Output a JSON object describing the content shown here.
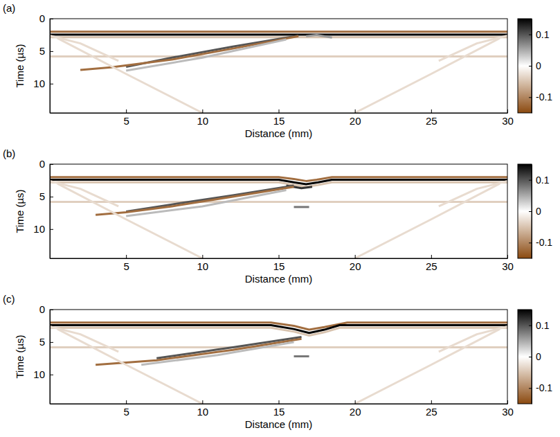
{
  "chart_data": [
    {
      "type": "image",
      "title": "(a)",
      "xlabel": "Distance (mm)",
      "ylabel": "Time (µs)",
      "xlim": [
        0,
        30
      ],
      "xticks": [
        5,
        10,
        15,
        20,
        25,
        30
      ],
      "ylim": [
        0,
        14.5
      ],
      "yticks": [
        0,
        5,
        10
      ],
      "colorbar_lim": [
        -0.15,
        0.15
      ],
      "colorbar_ticks": [
        -0.1,
        0,
        0.1
      ],
      "series": [
        {
          "amplitude": -0.12,
          "x": [
            0,
            30
          ],
          "y": [
            2.0,
            2.0
          ]
        },
        {
          "amplitude": 0.15,
          "x": [
            0,
            30
          ],
          "y": [
            2.45,
            2.45
          ]
        },
        {
          "amplitude": -0.05,
          "x": [
            0,
            30
          ],
          "y": [
            2.85,
            2.85
          ]
        },
        {
          "amplitude": -0.04,
          "x": [
            0,
            30
          ],
          "y": [
            5.8,
            5.8
          ]
        },
        {
          "amplitude": 0.1,
          "x": [
            16.3,
            12,
            8,
            5
          ],
          "y": [
            2.6,
            4.3,
            6.0,
            7.4
          ]
        },
        {
          "amplitude": -0.12,
          "x": [
            16.3,
            12,
            8,
            4,
            2
          ],
          "y": [
            2.7,
            4.6,
            6.3,
            7.5,
            7.9
          ]
        },
        {
          "amplitude": 0.04,
          "x": [
            15.5,
            10,
            5
          ],
          "y": [
            3.2,
            6.0,
            8.0
          ]
        },
        {
          "amplitude": -0.03,
          "x": [
            0.5,
            5,
            10
          ],
          "y": [
            3.0,
            8.5,
            14.5
          ]
        },
        {
          "amplitude": -0.03,
          "x": [
            29.5,
            25,
            20
          ],
          "y": [
            3.0,
            8.5,
            14.5
          ]
        },
        {
          "amplitude": -0.03,
          "x": [
            0,
            2,
            4.5
          ],
          "y": [
            2.6,
            3.8,
            6.5
          ]
        },
        {
          "amplitude": -0.03,
          "x": [
            30,
            28,
            25.5
          ],
          "y": [
            2.6,
            3.8,
            6.5
          ]
        },
        {
          "amplitude": 0.06,
          "x": [
            16.8,
            17.5,
            18.5
          ],
          "y": [
            2.7,
            2.5,
            2.9
          ]
        }
      ]
    },
    {
      "type": "image",
      "title": "(b)",
      "xlabel": "Distance (mm)",
      "ylabel": "Time (µs)",
      "xlim": [
        0,
        30
      ],
      "xticks": [
        5,
        10,
        15,
        20,
        25,
        30
      ],
      "ylim": [
        0,
        14.5
      ],
      "yticks": [
        0,
        5,
        10
      ],
      "colorbar_lim": [
        -0.15,
        0.15
      ],
      "colorbar_ticks": [
        -0.1,
        0,
        0.1
      ],
      "series": [
        {
          "amplitude": -0.12,
          "x": [
            0,
            15,
            16,
            16.8,
            17.5,
            18.5,
            30
          ],
          "y": [
            2.0,
            2.0,
            2.3,
            2.6,
            2.4,
            2.0,
            2.0
          ]
        },
        {
          "amplitude": 0.15,
          "x": [
            0,
            15,
            16,
            16.8,
            17.6,
            18.5,
            30
          ],
          "y": [
            2.4,
            2.4,
            2.8,
            3.1,
            2.8,
            2.4,
            2.4
          ]
        },
        {
          "amplitude": -0.05,
          "x": [
            0,
            15,
            16,
            16.8,
            17.6,
            18.5,
            30
          ],
          "y": [
            2.8,
            2.8,
            3.2,
            3.5,
            3.2,
            2.8,
            2.8
          ]
        },
        {
          "amplitude": -0.04,
          "x": [
            0,
            30
          ],
          "y": [
            5.8,
            5.8
          ]
        },
        {
          "amplitude": 0.12,
          "x": [
            15.5,
            16.5,
            17.2
          ],
          "y": [
            3.3,
            3.7,
            3.5
          ]
        },
        {
          "amplitude": 0.1,
          "x": [
            16,
            12,
            8,
            5
          ],
          "y": [
            3.3,
            4.8,
            6.2,
            7.3
          ]
        },
        {
          "amplitude": -0.12,
          "x": [
            16,
            12,
            8,
            5,
            3
          ],
          "y": [
            3.5,
            5.0,
            6.5,
            7.4,
            7.8
          ]
        },
        {
          "amplitude": 0.04,
          "x": [
            15.5,
            10,
            5
          ],
          "y": [
            4.0,
            6.5,
            8.0
          ]
        },
        {
          "amplitude": 0.08,
          "x": [
            16,
            17
          ],
          "y": [
            6.6,
            6.6
          ]
        },
        {
          "amplitude": -0.03,
          "x": [
            0.5,
            5,
            10
          ],
          "y": [
            3.0,
            8.5,
            14.5
          ]
        },
        {
          "amplitude": -0.03,
          "x": [
            29.5,
            25,
            20
          ],
          "y": [
            3.0,
            8.5,
            14.5
          ]
        },
        {
          "amplitude": -0.03,
          "x": [
            0,
            2,
            4.5
          ],
          "y": [
            2.6,
            3.8,
            6.5
          ]
        },
        {
          "amplitude": -0.03,
          "x": [
            30,
            28,
            25.5
          ],
          "y": [
            2.6,
            3.8,
            6.5
          ]
        }
      ]
    },
    {
      "type": "image",
      "title": "(c)",
      "xlabel": "Distance (mm)",
      "ylabel": "Time (µs)",
      "xlim": [
        0,
        30
      ],
      "xticks": [
        5,
        10,
        15,
        20,
        25,
        30
      ],
      "ylim": [
        0,
        14.5
      ],
      "yticks": [
        0,
        5,
        10
      ],
      "colorbar_lim": [
        -0.15,
        0.15
      ],
      "colorbar_ticks": [
        -0.1,
        0,
        0.1
      ],
      "series": [
        {
          "amplitude": -0.12,
          "x": [
            0,
            14.5,
            16,
            17,
            18,
            19.5,
            30
          ],
          "y": [
            2.0,
            2.0,
            2.5,
            3.1,
            2.7,
            2.0,
            2.0
          ]
        },
        {
          "amplitude": 0.15,
          "x": [
            0,
            14.5,
            16,
            17,
            18,
            19,
            30
          ],
          "y": [
            2.4,
            2.4,
            3.0,
            3.6,
            3.1,
            2.4,
            2.4
          ]
        },
        {
          "amplitude": -0.05,
          "x": [
            0,
            14.5,
            16,
            17,
            18,
            19,
            30
          ],
          "y": [
            2.8,
            2.8,
            3.4,
            4.0,
            3.5,
            2.8,
            2.8
          ]
        },
        {
          "amplitude": -0.04,
          "x": [
            0,
            30
          ],
          "y": [
            5.8,
            5.8
          ]
        },
        {
          "amplitude": 0.1,
          "x": [
            16.5,
            12,
            7
          ],
          "y": [
            4.2,
            5.8,
            7.5
          ]
        },
        {
          "amplitude": -0.12,
          "x": [
            16.5,
            12,
            7,
            3
          ],
          "y": [
            4.5,
            6.2,
            7.8,
            8.5
          ]
        },
        {
          "amplitude": 0.04,
          "x": [
            16,
            11,
            6
          ],
          "y": [
            5.0,
            7.0,
            8.5
          ]
        },
        {
          "amplitude": 0.08,
          "x": [
            16,
            17
          ],
          "y": [
            7.2,
            7.2
          ]
        },
        {
          "amplitude": -0.03,
          "x": [
            0.5,
            5,
            10
          ],
          "y": [
            3.0,
            8.5,
            14.5
          ]
        },
        {
          "amplitude": -0.03,
          "x": [
            29.5,
            25,
            20
          ],
          "y": [
            3.0,
            8.5,
            14.5
          ]
        },
        {
          "amplitude": -0.03,
          "x": [
            0,
            2,
            4.5
          ],
          "y": [
            2.6,
            3.8,
            6.5
          ]
        },
        {
          "amplitude": -0.03,
          "x": [
            30,
            28,
            25.5
          ],
          "y": [
            2.6,
            3.8,
            6.5
          ]
        }
      ]
    }
  ]
}
